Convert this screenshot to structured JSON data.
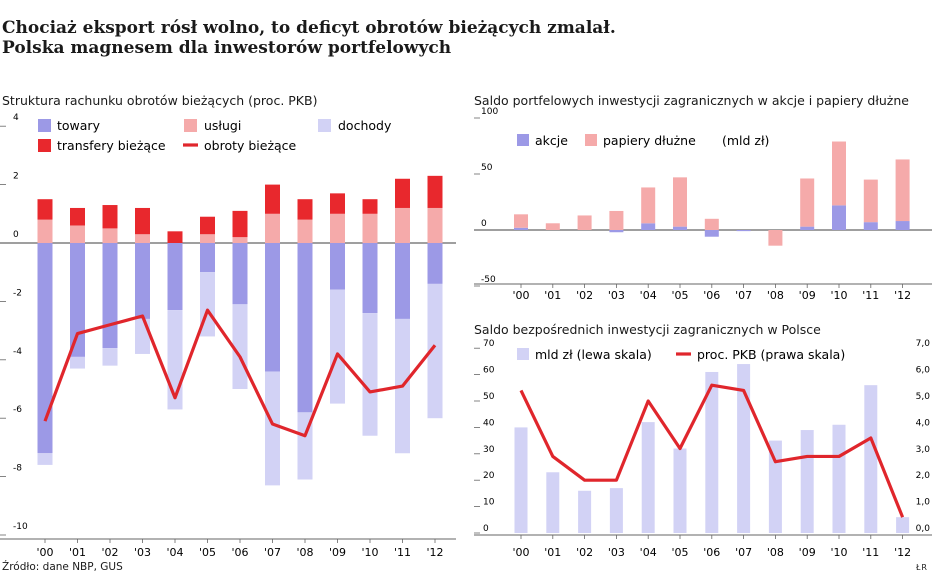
{
  "header": {
    "title_line1": "Chociaż eksport rósł wolno, to deficyt obrotów bieżących zmalał.",
    "title_line2": "Polska magnesem dla inwestorów portfelowych"
  },
  "footer": {
    "source": "Źródło: dane NBP, GUS",
    "signature": "ŁR"
  },
  "colors": {
    "towary": "#9c99e6",
    "uslugi": "#f5aaaa",
    "dochody": "#d2d2f5",
    "transfery": "#e8282d",
    "line": "#e0262c",
    "akcje": "#9c99e6",
    "papiery": "#f5aaaa",
    "mld_zl": "#d2d2f5",
    "pkb_line": "#e0262c",
    "axis": "#666666"
  },
  "chart_data": [
    {
      "type": "bar",
      "id": "left",
      "title": "Struktura rachunku obrotów bieżących (proc. PKB)",
      "categories": [
        "'00",
        "'01",
        "'02",
        "'03",
        "'04",
        "'05",
        "'06",
        "'07",
        "'08",
        "'09",
        "'10",
        "'11",
        "'12"
      ],
      "ylim": [
        -10,
        4
      ],
      "yticks": [
        "4",
        "2",
        "0",
        "-2",
        "-4",
        "-6",
        "-8",
        "-10"
      ],
      "series": [
        {
          "name": "towary",
          "values": [
            -7.2,
            -3.9,
            -3.6,
            -2.6,
            -2.3,
            -1.0,
            -2.1,
            -4.4,
            -5.8,
            -1.6,
            -2.4,
            -2.6,
            -1.4
          ]
        },
        {
          "name": "usługi",
          "values": [
            0.8,
            0.6,
            0.5,
            0.3,
            0.0,
            0.3,
            0.2,
            1.0,
            0.8,
            1.0,
            1.0,
            1.2,
            1.2
          ]
        },
        {
          "name": "dochody",
          "values": [
            -0.4,
            -0.4,
            -0.6,
            -1.2,
            -3.4,
            -2.2,
            -2.9,
            -3.9,
            -2.3,
            -3.9,
            -4.2,
            -4.6,
            -4.6
          ]
        },
        {
          "name": "transfery bieżące",
          "values": [
            0.7,
            0.6,
            0.8,
            0.9,
            0.4,
            0.6,
            0.9,
            1.0,
            0.7,
            0.7,
            0.5,
            1.0,
            1.1
          ]
        }
      ],
      "line": {
        "name": "obroty bieżące",
        "values": [
          -6.1,
          -3.1,
          -2.8,
          -2.5,
          -5.3,
          -2.3,
          -3.9,
          -6.2,
          -6.6,
          -3.8,
          -5.1,
          -4.9,
          -3.5
        ]
      },
      "legend": {
        "towary": "towary",
        "uslugi": "usługi",
        "dochody": "dochody",
        "transfery": "transfery bieżące",
        "obroty": "obroty bieżące"
      }
    },
    {
      "type": "bar",
      "id": "top-right",
      "title": "Saldo portfelowych inwestycji zagranicznych w akcje i papiery dłużne",
      "categories": [
        "'00",
        "'01",
        "'02",
        "'03",
        "'04",
        "'05",
        "'06",
        "'07",
        "'08",
        "'09",
        "'10",
        "'11",
        "'12"
      ],
      "ylim": [
        -50,
        100
      ],
      "yticks": [
        "100",
        "50",
        "0",
        "-50"
      ],
      "series": [
        {
          "name": "akcje",
          "values": [
            2,
            0,
            0,
            -2,
            6,
            3,
            -6,
            -1,
            0,
            3,
            22,
            7,
            8
          ]
        },
        {
          "name": "papiery dłużne",
          "values": [
            12,
            6,
            13,
            17,
            32,
            44,
            10,
            0,
            -14,
            43,
            57,
            38,
            55
          ]
        }
      ],
      "legend": {
        "akcje": "akcje",
        "papiery": "papiery dłużne",
        "unit": "(mld zł)"
      }
    },
    {
      "type": "bar",
      "id": "bottom-right",
      "title": "Saldo bezpośrednich inwestycji zagranicznych w Polsce",
      "categories": [
        "'00",
        "'01",
        "'02",
        "'03",
        "'04",
        "'05",
        "'06",
        "'07",
        "'08",
        "'09",
        "'10",
        "'11",
        "'12"
      ],
      "ylim": [
        0,
        70
      ],
      "yticks_left": [
        "70",
        "60",
        "50",
        "40",
        "30",
        "20",
        "10",
        "0"
      ],
      "yticks_right": [
        "7,0",
        "6,0",
        "5,0",
        "4,0",
        "3,0",
        "2,0",
        "1,0",
        "0,0"
      ],
      "y2lim": [
        0,
        7
      ],
      "series": [
        {
          "name": "mld zł (lewa skala)",
          "values": [
            40,
            23,
            16,
            17,
            42,
            32,
            61,
            64,
            35,
            39,
            41,
            56,
            6
          ]
        }
      ],
      "line": {
        "name": "proc. PKB (prawa skala)",
        "values": [
          5.4,
          2.9,
          2.0,
          2.0,
          5.0,
          3.2,
          5.6,
          5.4,
          2.7,
          2.9,
          2.9,
          3.6,
          0.6
        ]
      },
      "legend": {
        "bars": "mld zł (lewa skala)",
        "line": "proc. PKB (prawa skala)"
      }
    }
  ]
}
